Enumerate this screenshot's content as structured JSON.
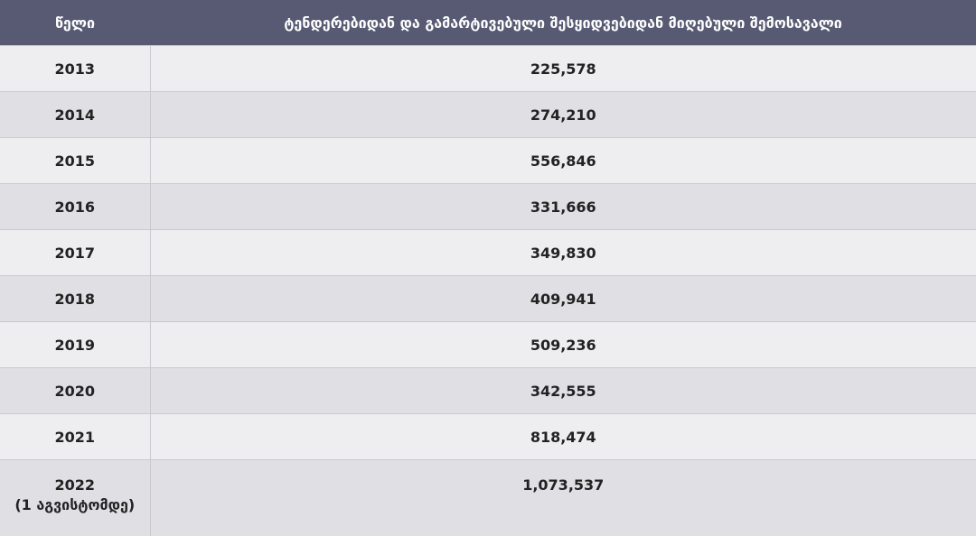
{
  "table": {
    "headers": [
      "წელი",
      "ტენდერებიდან და გამარტივებული შესყიდვებიდან მიღებული შემოსავალი"
    ],
    "rows": [
      {
        "year": "2013",
        "value": "225,578"
      },
      {
        "year": "2014",
        "value": "274,210"
      },
      {
        "year": "2015",
        "value": "556,846"
      },
      {
        "year": "2016",
        "value": "331,666"
      },
      {
        "year": "2017",
        "value": "349,830"
      },
      {
        "year": "2018",
        "value": "409,941"
      },
      {
        "year": "2019",
        "value": "509,236"
      },
      {
        "year": "2020",
        "value": "342,555"
      },
      {
        "year": "2021",
        "value": "818,474"
      }
    ],
    "last_row": {
      "year": "2022",
      "note": "(1 აგვისტომდე)",
      "value": "1,073,537"
    }
  },
  "colors": {
    "header_bg": "#585a73",
    "row_odd": "#eeeef0",
    "row_even": "#e0dfe4"
  }
}
